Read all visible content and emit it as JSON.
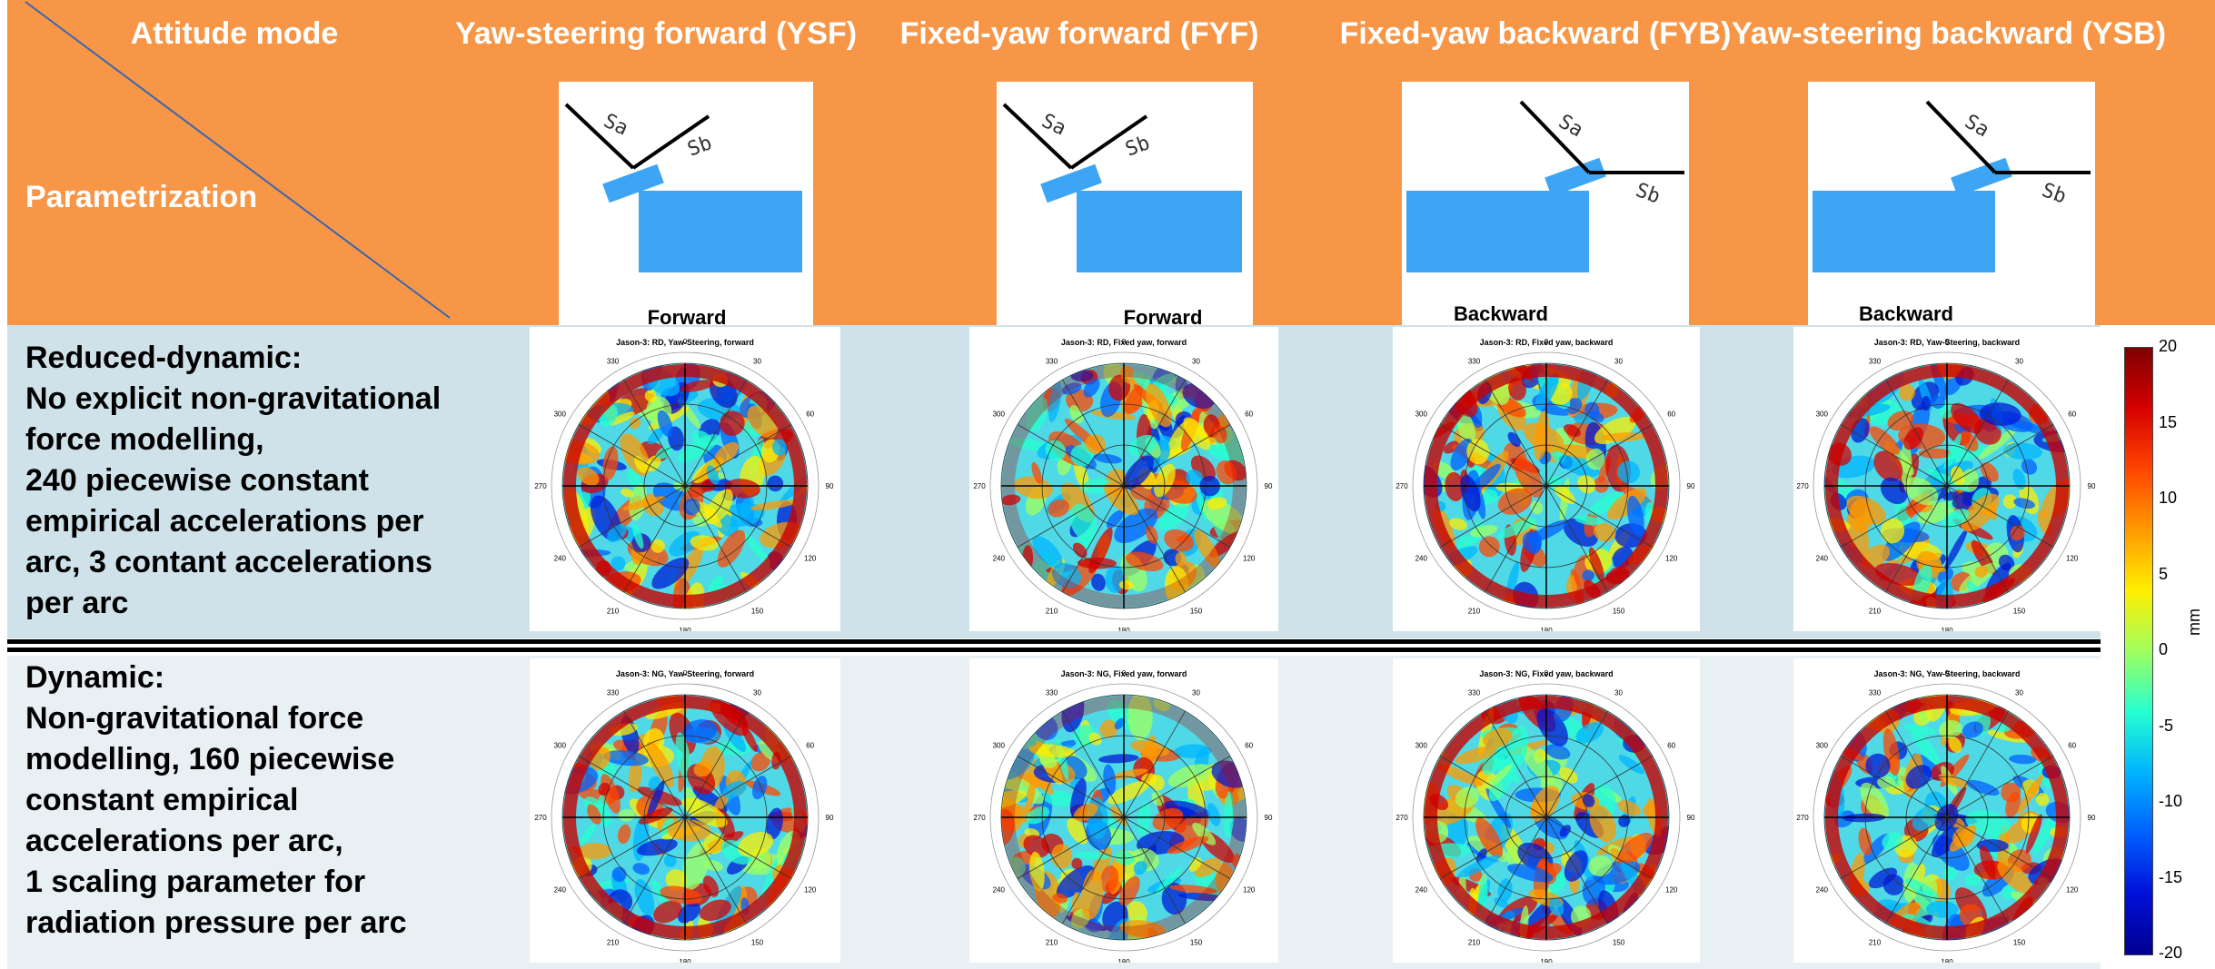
{
  "header": {
    "corner_top": "Attitude mode",
    "corner_bottom": "Parametrization",
    "columns": [
      {
        "label": "Yaw-steering forward (YSF)",
        "caption": "Forward",
        "diagram": "forward",
        "plot_title": "Jason-3: RD, Yaw-Steering, forward",
        "plot_title_ng": "Jason-3: NG, Yaw-Steering, forward"
      },
      {
        "label": "Fixed-yaw forward (FYF)",
        "caption": "Forward",
        "diagram": "forward",
        "plot_title": "Jason-3: RD, Fixed yaw, forward",
        "plot_title_ng": "Jason-3: NG, Fixed yaw, forward"
      },
      {
        "label": "Fixed-yaw backward (FYB)",
        "caption": "Backward",
        "diagram": "backward",
        "plot_title": "Jason-3: RD, Fixed yaw, backward",
        "plot_title_ng": "Jason-3: NG, Fixed yaw, backward"
      },
      {
        "label": "Yaw-steering backward (YSB)",
        "caption": "Backward",
        "diagram": "backward",
        "plot_title": "Jason-3: RD, Yaw-Steering, backward",
        "plot_title_ng": "Jason-3: NG, Yaw-Steering, backward"
      }
    ],
    "sa_label": "Sa",
    "sb_label": "Sb"
  },
  "rows": [
    {
      "lines": [
        "Reduced-dynamic:",
        "No explicit non-gravitational",
        "force modelling,",
        "240 piecewise constant",
        "empirical accelerations per",
        "arc, 3 contant accelerations",
        "per arc"
      ]
    },
    {
      "lines": [
        "Dynamic:",
        "Non-gravitational force",
        "modelling, 160 piecewise",
        "constant empirical",
        "accelerations per arc,",
        "1 scaling parameter for",
        "radiation pressure per arc"
      ]
    }
  ],
  "polar": {
    "angle_labels": [
      "0",
      "30",
      "60",
      "90",
      "120",
      "150",
      "180",
      "210",
      "240",
      "270",
      "300",
      "330"
    ]
  },
  "colorbar": {
    "unit": "mm",
    "ticks": [
      "20",
      "15",
      "10",
      "5",
      "0",
      "-5",
      "-10",
      "-15",
      "-20"
    ],
    "min": -20,
    "max": 20
  },
  "colors": {
    "header": "#f79646",
    "row1": "#cfe2e9",
    "row2": "#e8f0f3",
    "panel": "#3da5f4"
  }
}
